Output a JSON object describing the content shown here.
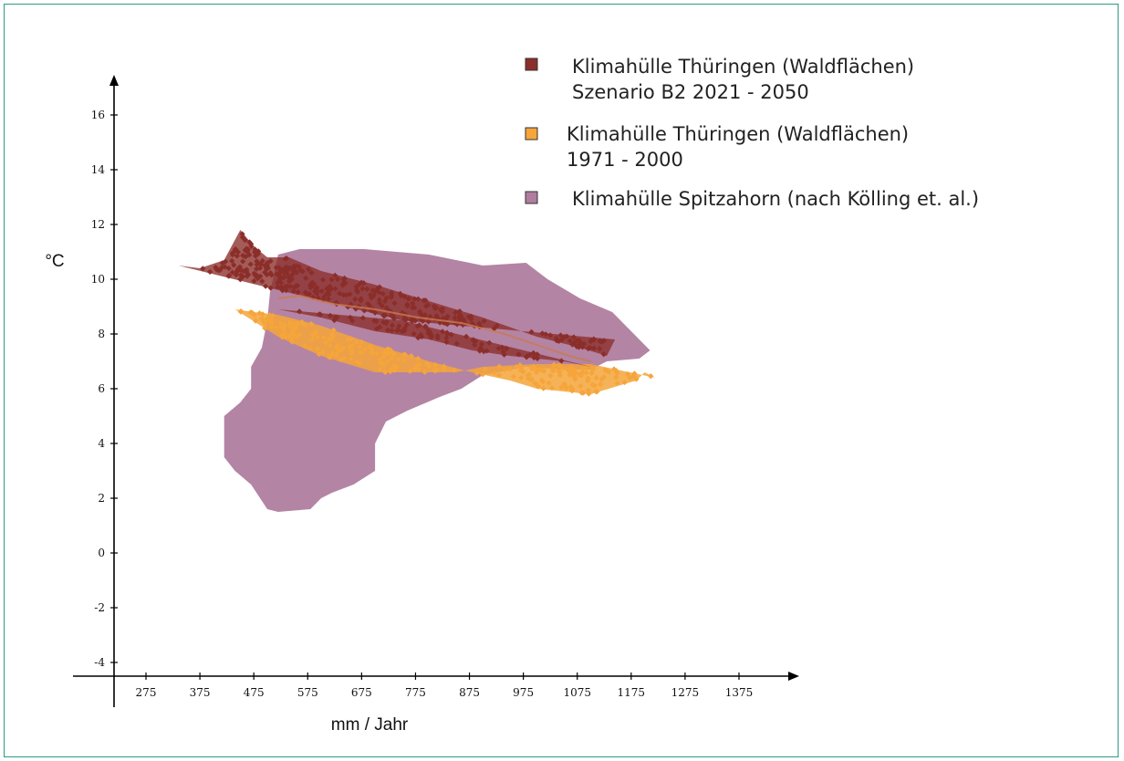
{
  "chart_data": {
    "type": "scatter",
    "xlabel": "mm / Jahr",
    "ylabel": "°C",
    "x_ticks": [
      275,
      375,
      475,
      575,
      675,
      775,
      875,
      975,
      1075,
      1175,
      1275,
      1375
    ],
    "y_ticks": [
      16,
      14,
      12,
      10,
      8,
      6,
      4,
      2,
      0,
      -2,
      -4
    ],
    "xlim": [
      175,
      1425
    ],
    "ylim": [
      -4.5,
      17
    ],
    "legend_position": "top-right",
    "series": [
      {
        "name": "Klimahülle Thüringen (Waldflächen)",
        "subtitle": "Szenario B2 2021 - 2050",
        "color": "#8b2e2a",
        "kind": "point-cloud",
        "approx_points": [
          [
            335,
            10.5
          ],
          [
            375,
            10.4
          ],
          [
            420,
            10.7
          ],
          [
            450,
            11.8
          ],
          [
            475,
            11.2
          ],
          [
            500,
            10.8
          ],
          [
            540,
            10.8
          ],
          [
            600,
            10.3
          ],
          [
            700,
            9.8
          ],
          [
            800,
            9.2
          ],
          [
            900,
            8.6
          ],
          [
            1000,
            7.9
          ],
          [
            1080,
            7.5
          ],
          [
            1130,
            7.2
          ],
          [
            1145,
            7.8
          ],
          [
            520,
            8.9
          ],
          [
            600,
            8.6
          ],
          [
            700,
            8.1
          ],
          [
            800,
            7.8
          ],
          [
            880,
            7.4
          ],
          [
            950,
            7.2
          ],
          [
            1050,
            7.0
          ],
          [
            1100,
            6.8
          ]
        ]
      },
      {
        "name": "Klimahülle Thüringen (Waldflächen)",
        "subtitle": "1971 - 2000",
        "color": "#f5a53a",
        "kind": "point-cloud",
        "approx_points": [
          [
            440,
            8.9
          ],
          [
            475,
            8.8
          ],
          [
            520,
            8.7
          ],
          [
            600,
            8.3
          ],
          [
            700,
            7.6
          ],
          [
            800,
            7.0
          ],
          [
            880,
            6.6
          ],
          [
            950,
            6.3
          ],
          [
            1000,
            6.0
          ],
          [
            1050,
            5.9
          ],
          [
            1100,
            5.8
          ],
          [
            1150,
            6.1
          ],
          [
            1185,
            6.3
          ],
          [
            1200,
            6.6
          ],
          [
            1220,
            6.4
          ],
          [
            1100,
            6.9
          ],
          [
            1000,
            6.9
          ],
          [
            900,
            6.8
          ],
          [
            850,
            6.6
          ],
          [
            700,
            6.6
          ],
          [
            600,
            7.2
          ],
          [
            520,
            7.9
          ]
        ]
      },
      {
        "name": "Klimahülle Spitzahorn (nach Kölling et. al.)",
        "color": "#b07d9f",
        "kind": "envelope",
        "polygon": [
          [
            520,
            10.9
          ],
          [
            560,
            11.1
          ],
          [
            680,
            11.1
          ],
          [
            800,
            10.9
          ],
          [
            900,
            10.5
          ],
          [
            980,
            10.6
          ],
          [
            1020,
            10.0
          ],
          [
            1080,
            9.3
          ],
          [
            1140,
            8.8
          ],
          [
            1180,
            8.0
          ],
          [
            1210,
            7.4
          ],
          [
            1190,
            7.1
          ],
          [
            1130,
            7.0
          ],
          [
            1100,
            6.7
          ],
          [
            1050,
            6.7
          ],
          [
            980,
            6.8
          ],
          [
            900,
            6.5
          ],
          [
            860,
            6.0
          ],
          [
            820,
            5.7
          ],
          [
            760,
            5.2
          ],
          [
            720,
            4.8
          ],
          [
            700,
            4.0
          ],
          [
            700,
            3.0
          ],
          [
            660,
            2.5
          ],
          [
            620,
            2.2
          ],
          [
            600,
            2.0
          ],
          [
            580,
            1.6
          ],
          [
            520,
            1.5
          ],
          [
            500,
            1.6
          ],
          [
            470,
            2.5
          ],
          [
            440,
            3.0
          ],
          [
            420,
            3.5
          ],
          [
            420,
            5.0
          ],
          [
            450,
            5.5
          ],
          [
            470,
            6.0
          ],
          [
            470,
            6.8
          ],
          [
            490,
            7.5
          ],
          [
            500,
            8.5
          ],
          [
            505,
            9.5
          ]
        ]
      }
    ]
  },
  "legend": {
    "items": [
      {
        "line1": "Klimahülle Thüringen (Waldflächen)",
        "line2": "Szenario B2 2021 - 2050",
        "color": "#8b2e2a"
      },
      {
        "line1": "Klimahülle Thüringen (Waldflächen)",
        "line2": "1971 - 2000",
        "color": "#f5a53a"
      },
      {
        "line1": "Klimahülle Spitzahorn (nach Kölling et. al.)",
        "line2": "",
        "color": "#b07d9f"
      }
    ]
  }
}
